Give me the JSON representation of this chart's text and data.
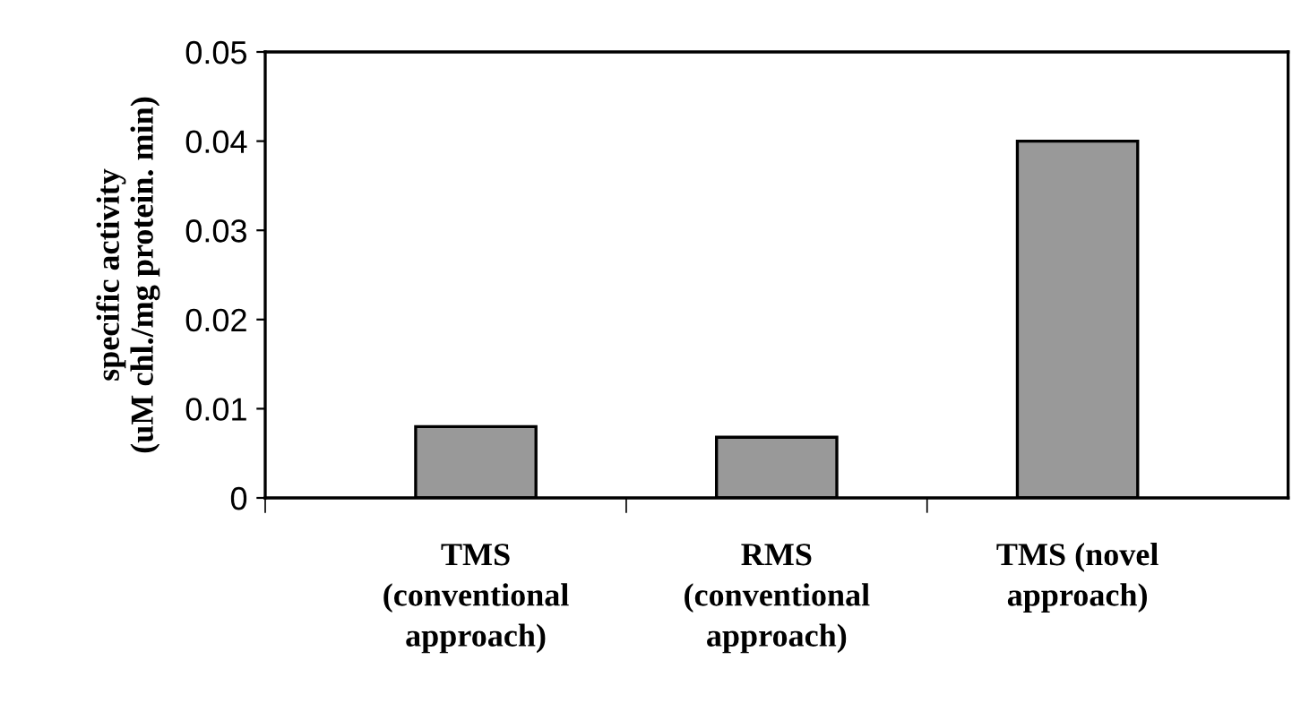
{
  "chart_data": {
    "type": "bar",
    "ylabel": "specific activity\n(uM chl./mg protein. min)",
    "categories": [
      "TMS\n(conventional\napproach)",
      "RMS\n(conventional\napproach)",
      "TMS (novel\napproach)"
    ],
    "values": [
      0.008,
      0.0068,
      0.04
    ],
    "color": "#999999",
    "ylim": [
      0,
      0.05
    ],
    "yticks": [
      {
        "value": 0,
        "label": "0"
      },
      0.01,
      0.02,
      0.03,
      0.04,
      0.05
    ],
    "grid": false
  }
}
